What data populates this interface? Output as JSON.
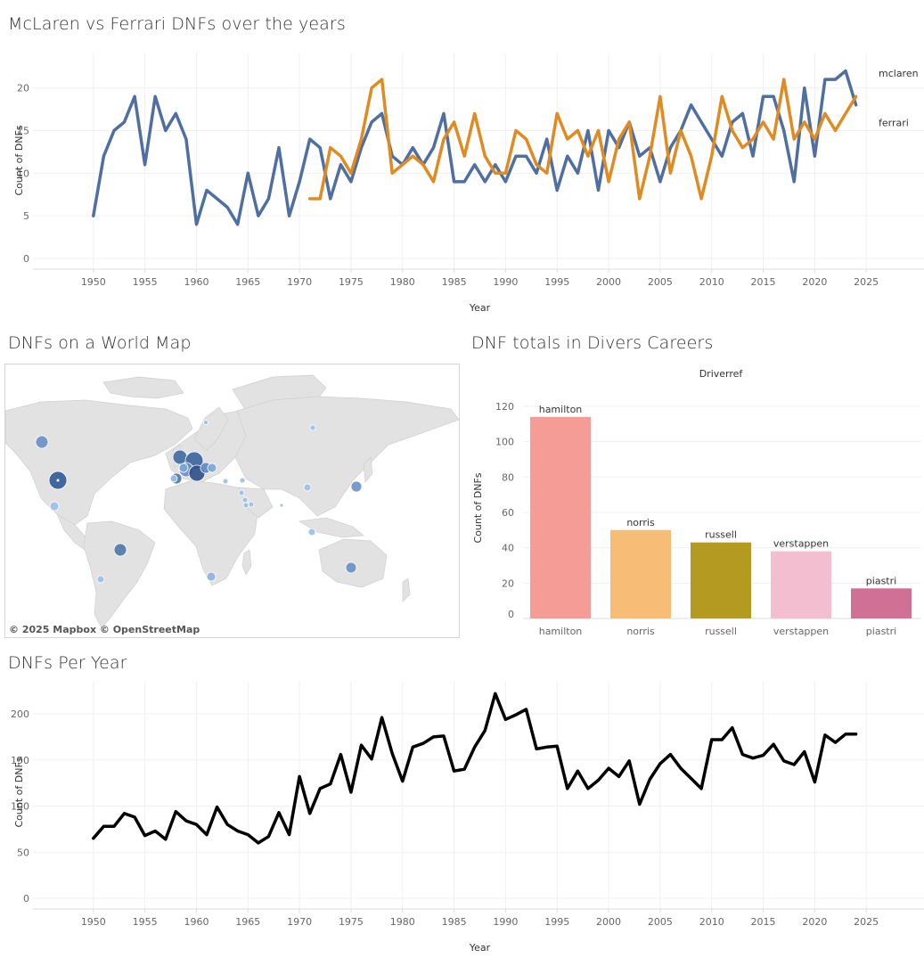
{
  "titles": {
    "line_chart": "McLaren vs Ferrari DNFs over the years",
    "map": "DNFs on a World Map",
    "bar_chart": "DNF totals in Divers Careers",
    "per_year": "DNFs Per Year"
  },
  "map": {
    "attribution": "© 2025 Mapbox  © OpenStreetMap"
  },
  "colors": {
    "mclaren": "#4e6fa0",
    "ferrari": "#e08b22",
    "per_year_line": "#000000",
    "map_land": "#e0e0e0",
    "map_marker": "#4e79a7",
    "gridline": "#efefef"
  },
  "chart_data": [
    {
      "id": "mclaren-vs-ferrari",
      "type": "line",
      "xlabel": "Year",
      "ylabel": "Count of DNFs",
      "xticks": [
        1950,
        1955,
        1960,
        1965,
        1970,
        1975,
        1980,
        1985,
        1990,
        1995,
        2000,
        2005,
        2010,
        2015,
        2020,
        2025
      ],
      "yticks": [
        0,
        5,
        10,
        15,
        20
      ],
      "xlim": [
        1945,
        2030
      ],
      "ylim": [
        0,
        23
      ],
      "grid": true,
      "series": [
        {
          "name": "mclaren",
          "points": [
            [
              1950,
              5
            ],
            [
              1951,
              12
            ],
            [
              1952,
              15
            ],
            [
              1953,
              16
            ],
            [
              1954,
              19
            ],
            [
              1955,
              11
            ],
            [
              1956,
              19
            ],
            [
              1957,
              15
            ],
            [
              1958,
              17
            ],
            [
              1959,
              14
            ],
            [
              1960,
              4
            ],
            [
              1961,
              8
            ],
            [
              1962,
              7
            ],
            [
              1963,
              6
            ],
            [
              1964,
              4
            ],
            [
              1965,
              10
            ],
            [
              1966,
              5
            ],
            [
              1967,
              7
            ],
            [
              1968,
              13
            ],
            [
              1969,
              5
            ],
            [
              1970,
              9
            ],
            [
              1971,
              14
            ],
            [
              1972,
              13
            ],
            [
              1973,
              7
            ],
            [
              1974,
              11
            ],
            [
              1975,
              9
            ],
            [
              1976,
              13
            ],
            [
              1977,
              16
            ],
            [
              1978,
              17
            ],
            [
              1979,
              12
            ],
            [
              1980,
              11
            ],
            [
              1981,
              13
            ],
            [
              1982,
              11
            ],
            [
              1983,
              13
            ],
            [
              1984,
              17
            ],
            [
              1985,
              9
            ],
            [
              1986,
              9
            ],
            [
              1987,
              11
            ],
            [
              1988,
              9
            ],
            [
              1989,
              11
            ],
            [
              1990,
              9
            ],
            [
              1991,
              12
            ],
            [
              1992,
              12
            ],
            [
              1993,
              10
            ],
            [
              1994,
              14
            ],
            [
              1995,
              8
            ],
            [
              1996,
              12
            ],
            [
              1997,
              10
            ],
            [
              1998,
              15
            ],
            [
              1999,
              8
            ],
            [
              2000,
              15
            ],
            [
              2001,
              13
            ],
            [
              2002,
              16
            ],
            [
              2003,
              12
            ],
            [
              2004,
              13
            ],
            [
              2005,
              9
            ],
            [
              2006,
              13
            ],
            [
              2007,
              15
            ],
            [
              2008,
              18
            ],
            [
              2009,
              16
            ],
            [
              2010,
              14
            ],
            [
              2011,
              12
            ],
            [
              2012,
              16
            ],
            [
              2013,
              17
            ],
            [
              2014,
              12
            ],
            [
              2015,
              19
            ],
            [
              2016,
              19
            ],
            [
              2017,
              15
            ],
            [
              2018,
              9
            ],
            [
              2019,
              20
            ],
            [
              2020,
              12
            ],
            [
              2021,
              21
            ],
            [
              2022,
              21
            ],
            [
              2023,
              22
            ],
            [
              2024,
              18
            ]
          ]
        },
        {
          "name": "ferrari",
          "points": [
            [
              1971,
              7
            ],
            [
              1972,
              7
            ],
            [
              1973,
              13
            ],
            [
              1974,
              12
            ],
            [
              1975,
              10
            ],
            [
              1976,
              14
            ],
            [
              1977,
              20
            ],
            [
              1978,
              21
            ],
            [
              1979,
              10
            ],
            [
              1980,
              11
            ],
            [
              1981,
              12
            ],
            [
              1982,
              11
            ],
            [
              1983,
              9
            ],
            [
              1984,
              14
            ],
            [
              1985,
              16
            ],
            [
              1986,
              12
            ],
            [
              1987,
              17
            ],
            [
              1988,
              12
            ],
            [
              1989,
              10
            ],
            [
              1990,
              10
            ],
            [
              1991,
              15
            ],
            [
              1992,
              14
            ],
            [
              1993,
              11
            ],
            [
              1994,
              10
            ],
            [
              1995,
              17
            ],
            [
              1996,
              14
            ],
            [
              1997,
              15
            ],
            [
              1998,
              12
            ],
            [
              1999,
              15
            ],
            [
              2000,
              9
            ],
            [
              2001,
              14
            ],
            [
              2002,
              16
            ],
            [
              2003,
              7
            ],
            [
              2004,
              12
            ],
            [
              2005,
              19
            ],
            [
              2006,
              10
            ],
            [
              2007,
              15
            ],
            [
              2008,
              12
            ],
            [
              2009,
              7
            ],
            [
              2010,
              12
            ],
            [
              2011,
              19
            ],
            [
              2012,
              15
            ],
            [
              2013,
              13
            ],
            [
              2014,
              14
            ],
            [
              2015,
              16
            ],
            [
              2016,
              14
            ],
            [
              2017,
              21
            ],
            [
              2018,
              14
            ],
            [
              2019,
              16
            ],
            [
              2020,
              14
            ],
            [
              2021,
              17
            ],
            [
              2022,
              15
            ],
            [
              2023,
              17
            ],
            [
              2024,
              19
            ]
          ]
        }
      ]
    },
    {
      "id": "driver-dnf-totals",
      "type": "bar",
      "header": "Driverref",
      "ylabel": "Count of DNFs",
      "yticks": [
        0,
        20,
        40,
        60,
        80,
        100,
        120
      ],
      "ylim": [
        0,
        125
      ],
      "categories": [
        "hamilton",
        "norris",
        "russell",
        "verstappen",
        "piastri"
      ],
      "values": [
        114,
        50,
        43,
        38,
        17
      ],
      "colors": [
        "#f59c96",
        "#f7bd77",
        "#b59a22",
        "#f3bfd0",
        "#d07095"
      ]
    },
    {
      "id": "dnfs-per-year",
      "type": "line",
      "xlabel": "Year",
      "ylabel": "Count of DNFs",
      "xticks": [
        1950,
        1955,
        1960,
        1965,
        1970,
        1975,
        1980,
        1985,
        1990,
        1995,
        2000,
        2005,
        2010,
        2015,
        2020,
        2025
      ],
      "yticks": [
        0,
        50,
        100,
        150,
        200
      ],
      "xlim": [
        1945,
        2030
      ],
      "ylim": [
        0,
        230
      ],
      "grid": true,
      "series": [
        {
          "points": [
            [
              1950,
              65
            ],
            [
              1951,
              78
            ],
            [
              1952,
              78
            ],
            [
              1953,
              92
            ],
            [
              1954,
              88
            ],
            [
              1955,
              68
            ],
            [
              1956,
              73
            ],
            [
              1957,
              64
            ],
            [
              1958,
              94
            ],
            [
              1959,
              84
            ],
            [
              1960,
              80
            ],
            [
              1961,
              69
            ],
            [
              1962,
              99
            ],
            [
              1963,
              80
            ],
            [
              1964,
              73
            ],
            [
              1965,
              69
            ],
            [
              1966,
              60
            ],
            [
              1967,
              67
            ],
            [
              1968,
              93
            ],
            [
              1969,
              69
            ],
            [
              1970,
              132
            ],
            [
              1971,
              92
            ],
            [
              1972,
              119
            ],
            [
              1973,
              124
            ],
            [
              1974,
              156
            ],
            [
              1975,
              115
            ],
            [
              1976,
              166
            ],
            [
              1977,
              151
            ],
            [
              1978,
              196
            ],
            [
              1979,
              157
            ],
            [
              1980,
              127
            ],
            [
              1981,
              164
            ],
            [
              1982,
              168
            ],
            [
              1983,
              175
            ],
            [
              1984,
              176
            ],
            [
              1985,
              138
            ],
            [
              1986,
              140
            ],
            [
              1987,
              164
            ],
            [
              1988,
              182
            ],
            [
              1989,
              222
            ],
            [
              1990,
              194
            ],
            [
              1991,
              199
            ],
            [
              1992,
              205
            ],
            [
              1993,
              162
            ],
            [
              1994,
              164
            ],
            [
              1995,
              165
            ],
            [
              1996,
              119
            ],
            [
              1997,
              138
            ],
            [
              1998,
              119
            ],
            [
              1999,
              128
            ],
            [
              2000,
              141
            ],
            [
              2001,
              132
            ],
            [
              2002,
              149
            ],
            [
              2003,
              102
            ],
            [
              2004,
              129
            ],
            [
              2005,
              146
            ],
            [
              2006,
              156
            ],
            [
              2007,
              141
            ],
            [
              2008,
              130
            ],
            [
              2009,
              119
            ],
            [
              2010,
              172
            ],
            [
              2011,
              172
            ],
            [
              2012,
              185
            ],
            [
              2013,
              156
            ],
            [
              2014,
              152
            ],
            [
              2015,
              155
            ],
            [
              2016,
              167
            ],
            [
              2017,
              149
            ],
            [
              2018,
              145
            ],
            [
              2019,
              159
            ],
            [
              2020,
              126
            ],
            [
              2021,
              177
            ],
            [
              2022,
              169
            ],
            [
              2023,
              178
            ],
            [
              2024,
              178
            ]
          ]
        }
      ]
    }
  ]
}
